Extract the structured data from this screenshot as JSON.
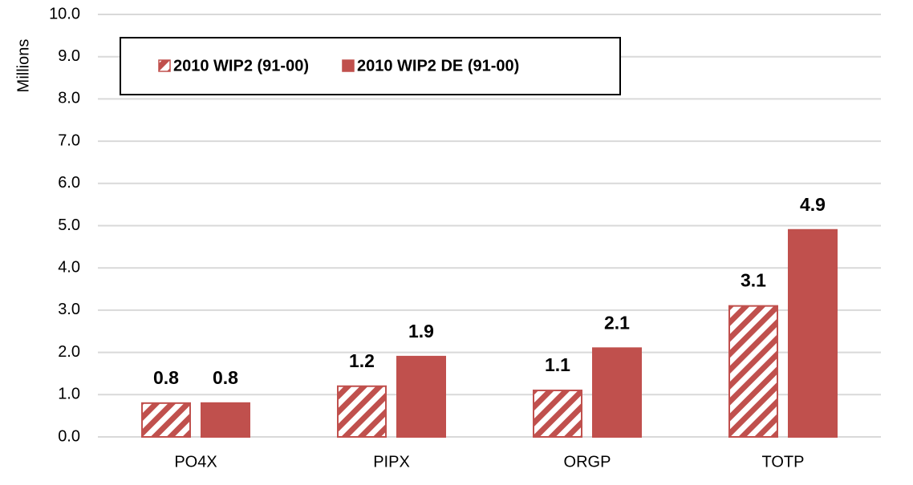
{
  "chart_data": {
    "type": "bar",
    "y_label": "Millions",
    "categories": [
      "PO4X",
      "PIPX",
      "ORGP",
      "TOTP"
    ],
    "series": [
      {
        "name": "2010 WIP2 (91-00)",
        "color": "#c0504d",
        "pattern": "hatch",
        "values": [
          0.8,
          1.2,
          1.1,
          3.1
        ]
      },
      {
        "name": "2010 WIP2 DE (91-00)",
        "color": "#c0504d",
        "pattern": "solid",
        "values": [
          0.8,
          1.9,
          2.1,
          4.9
        ]
      }
    ],
    "ylim": [
      0,
      10
    ],
    "yticks": [
      {
        "value": 0,
        "label": "0.0"
      },
      {
        "value": 1,
        "label": "1.0"
      },
      {
        "value": 2,
        "label": "2.0"
      },
      {
        "value": 3,
        "label": "3.0"
      },
      {
        "value": 4,
        "label": "4.0"
      },
      {
        "value": 5,
        "label": "5.0"
      },
      {
        "value": 6,
        "label": "6.0"
      },
      {
        "value": 7,
        "label": "7.0"
      },
      {
        "value": 8,
        "label": "8.0"
      },
      {
        "value": 9,
        "label": "9.0"
      },
      {
        "value": 10,
        "label": "10.0"
      }
    ],
    "grid": true,
    "legend": "top-left"
  }
}
